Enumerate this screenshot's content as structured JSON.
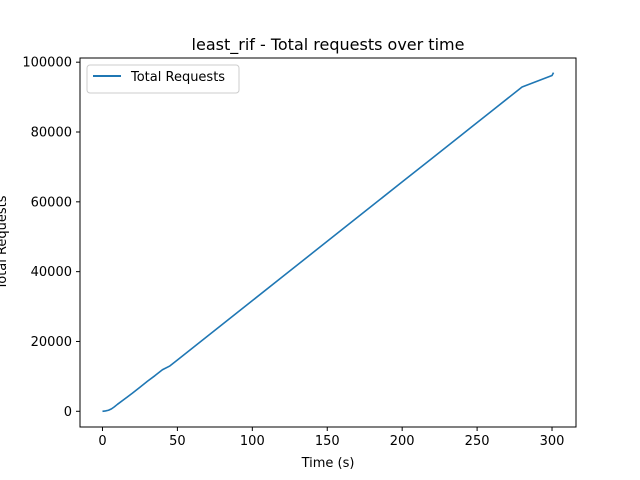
{
  "chart_data": {
    "type": "line",
    "title": "least_rif - Total requests over time",
    "xlabel": "Time (s)",
    "ylabel": "Total Requests",
    "xlim": [
      -15,
      316
    ],
    "ylim": [
      -4500,
      101200
    ],
    "xticks": [
      0,
      50,
      100,
      150,
      200,
      250,
      300
    ],
    "yticks": [
      0,
      20000,
      40000,
      60000,
      80000,
      100000
    ],
    "grid": false,
    "legend_position": "upper-left",
    "series": [
      {
        "name": "Total Requests",
        "color": "#1f77b4",
        "x": [
          0,
          2,
          4,
          6,
          8,
          10,
          15,
          20,
          25,
          30,
          35,
          40,
          45,
          50,
          60,
          70,
          80,
          90,
          100,
          120,
          140,
          160,
          180,
          200,
          220,
          240,
          260,
          280,
          300,
          301
        ],
        "y": [
          0,
          100,
          300,
          700,
          1300,
          2000,
          3600,
          5200,
          6900,
          8600,
          10200,
          11900,
          13000,
          14700,
          18100,
          21500,
          24900,
          28300,
          31700,
          38500,
          45300,
          52100,
          58900,
          65700,
          72500,
          79300,
          86100,
          92900,
          96200,
          97000
        ]
      }
    ]
  }
}
